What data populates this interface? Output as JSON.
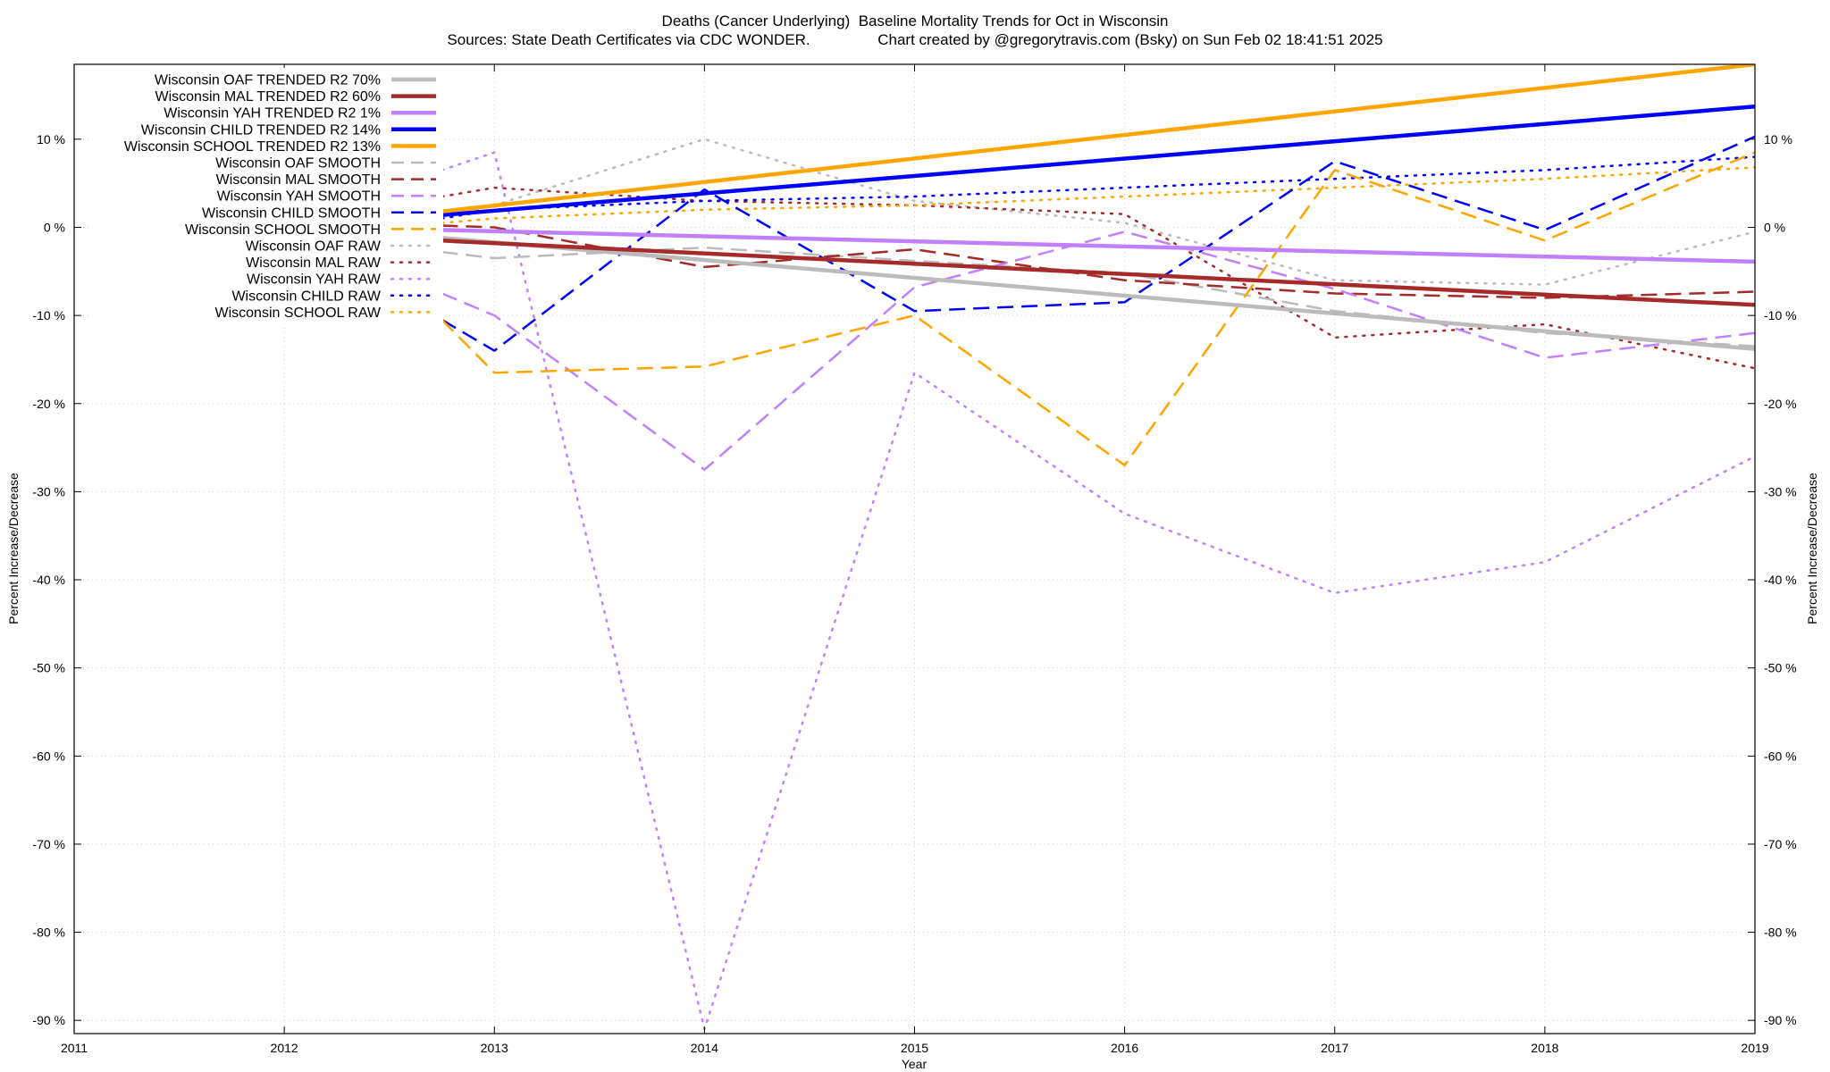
{
  "chart_data": {
    "type": "line",
    "title": "Deaths (Cancer Underlying)  Baseline Mortality Trends for Oct in Wisconsin",
    "subtitle": "Sources: State Death Certificates via CDC WONDER.                Chart created by @gregorytravis.com (Bsky) on Sun Feb 02 18:41:51 2025",
    "xlabel": "Year",
    "ylabel": "Percent Increase/Decrease",
    "y2label": "Percent Increase/Decrease",
    "xlim": [
      2011,
      2019
    ],
    "ylim": [
      -91.5,
      18.5
    ],
    "x_ticks": [
      "2011",
      "2012",
      "2013",
      "2014",
      "2015",
      "2016",
      "2017",
      "2018",
      "2019"
    ],
    "y_ticks": [
      "10 %",
      "0 %",
      "-10 %",
      "-20 %",
      "-30 %",
      "-40 %",
      "-50 %",
      "-60 %",
      "-70 %",
      "-80 %",
      "-90 %"
    ],
    "y2_ticks": [
      "10 %",
      "0 %",
      "-10 %",
      "-20 %",
      "-30 %",
      "-40 %",
      "-50 %",
      "-60 %",
      "-70 %",
      "-80 %",
      "-90 %"
    ],
    "grid": true,
    "legend_position": "top-left",
    "series": [
      {
        "name": "Wisconsin OAF TRENDED R2  70%",
        "color": "#bbbbbb",
        "style": "solid",
        "width": 4.5,
        "x": [
          2012.75,
          2019
        ],
        "y": [
          -1.2,
          -13.8
        ]
      },
      {
        "name": "Wisconsin MAL TRENDED R2  60%",
        "color": "#a52a2a",
        "style": "solid",
        "width": 4.5,
        "x": [
          2012.75,
          2019
        ],
        "y": [
          -1.5,
          -8.8
        ]
      },
      {
        "name": "Wisconsin YAH TRENDED R2   1%",
        "color": "#c080ff",
        "style": "solid",
        "width": 4.5,
        "x": [
          2012.75,
          2019
        ],
        "y": [
          -0.3,
          -3.9
        ]
      },
      {
        "name": "Wisconsin CHILD TRENDED R2  14%",
        "color": "#0000ff",
        "style": "solid",
        "width": 4.5,
        "x": [
          2012.75,
          2019
        ],
        "y": [
          1.4,
          13.7
        ]
      },
      {
        "name": "Wisconsin SCHOOL TRENDED R2  13%",
        "color": "#ffa500",
        "style": "solid",
        "width": 4.5,
        "x": [
          2012.75,
          2019
        ],
        "y": [
          1.8,
          18.5
        ]
      },
      {
        "name": "Wisconsin OAF SMOOTH",
        "color": "#bbbbbb",
        "style": "dashed",
        "width": 2.5,
        "x": [
          2012.75,
          2013,
          2014,
          2015,
          2016,
          2017,
          2018,
          2019
        ],
        "y": [
          -2.8,
          -3.5,
          -2.3,
          -3.8,
          -5.2,
          -9.5,
          -12.0,
          -13.5
        ]
      },
      {
        "name": "Wisconsin MAL SMOOTH",
        "color": "#a52a2a",
        "style": "dashed",
        "width": 2.5,
        "x": [
          2012.75,
          2013,
          2014,
          2015,
          2016,
          2017,
          2018,
          2019
        ],
        "y": [
          0.2,
          0.0,
          -4.5,
          -2.5,
          -6.0,
          -7.5,
          -8.0,
          -7.3
        ]
      },
      {
        "name": "Wisconsin YAH SMOOTH",
        "color": "#c080ff",
        "style": "dashed",
        "width": 2.5,
        "x": [
          2012.75,
          2013,
          2014,
          2015,
          2016,
          2017,
          2018,
          2019
        ],
        "y": [
          -7.5,
          -10.0,
          -27.5,
          -6.8,
          -0.5,
          -7.0,
          -14.8,
          -12.0
        ]
      },
      {
        "name": "Wisconsin CHILD SMOOTH",
        "color": "#0000ff",
        "style": "dashed",
        "width": 2.5,
        "x": [
          2012.75,
          2013,
          2014,
          2015,
          2016,
          2017,
          2018,
          2019
        ],
        "y": [
          -10.5,
          -14.0,
          4.3,
          -9.5,
          -8.5,
          7.5,
          -0.3,
          10.3
        ]
      },
      {
        "name": "Wisconsin SCHOOL SMOOTH",
        "color": "#ffa500",
        "style": "dashed",
        "width": 2.5,
        "x": [
          2012.75,
          2013,
          2014,
          2015,
          2016,
          2017,
          2018,
          2019
        ],
        "y": [
          -10.5,
          -16.5,
          -15.8,
          -10.0,
          -27.0,
          6.5,
          -1.5,
          8.5
        ]
      },
      {
        "name": "Wisconsin OAF RAW",
        "color": "#bbbbbb",
        "style": "dotted",
        "width": 2.5,
        "x": [
          2012.75,
          2013,
          2014,
          2015,
          2016,
          2017,
          2018,
          2019
        ],
        "y": [
          1.0,
          2.5,
          10.0,
          3.0,
          0.5,
          -6.0,
          -6.5,
          -0.5
        ]
      },
      {
        "name": "Wisconsin MAL RAW",
        "color": "#a52a2a",
        "style": "dotted",
        "width": 2.5,
        "x": [
          2012.75,
          2013,
          2014,
          2015,
          2016,
          2017,
          2018,
          2019
        ],
        "y": [
          3.5,
          4.5,
          3.0,
          2.5,
          1.5,
          -12.5,
          -11.0,
          -16.0
        ]
      },
      {
        "name": "Wisconsin YAH RAW",
        "color": "#c080ff",
        "style": "dotted",
        "width": 2.5,
        "x": [
          2012.75,
          2013,
          2014,
          2015,
          2016,
          2017,
          2018,
          2019
        ],
        "y": [
          6.5,
          8.5,
          -91.0,
          -16.5,
          -32.5,
          -41.5,
          -38.0,
          -26.0
        ]
      },
      {
        "name": "Wisconsin CHILD RAW",
        "color": "#0000ff",
        "style": "dotted",
        "width": 2.5,
        "x": [
          2012.75,
          2013,
          2014,
          2015,
          2016,
          2017,
          2018,
          2019
        ],
        "y": [
          1.0,
          2.0,
          3.0,
          3.5,
          4.5,
          5.5,
          6.5,
          8.0
        ]
      },
      {
        "name": "Wisconsin SCHOOL RAW",
        "color": "#ffa500",
        "style": "dotted",
        "width": 2.5,
        "x": [
          2012.75,
          2013,
          2014,
          2015,
          2016,
          2017,
          2018,
          2019
        ],
        "y": [
          0.5,
          1.0,
          2.0,
          2.5,
          3.5,
          4.5,
          5.5,
          6.8
        ]
      }
    ]
  }
}
